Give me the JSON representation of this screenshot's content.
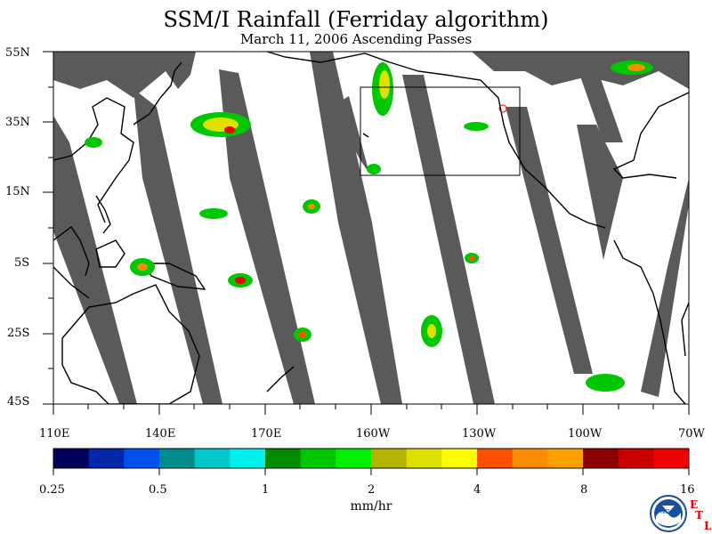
{
  "title": "SSM/I Rainfall (Ferriday algorithm)",
  "subtitle": "March 11, 2006  Ascending Passes",
  "lat_labels": [
    "55N",
    "35N",
    "15N",
    "5S",
    "25S",
    "45S"
  ],
  "lon_labels": [
    "110E",
    "140E",
    "170E",
    "160W",
    "130W",
    "100W",
    "70W"
  ],
  "colorbar": {
    "colors": [
      "#00005a",
      "#0028a8",
      "#0050f0",
      "#008c8c",
      "#00c8c8",
      "#00f0f0",
      "#008c00",
      "#00c800",
      "#00f000",
      "#b4b400",
      "#e0e000",
      "#ffff00",
      "#ff5000",
      "#ff8c00",
      "#ffa000",
      "#8c0000",
      "#c80000",
      "#f00000"
    ],
    "tick_labels": [
      "0.25",
      "0.5",
      "1",
      "2",
      "4",
      "8",
      "16"
    ],
    "units": "mm/hr"
  },
  "colors": {
    "swath_gap": "#5a5a5a",
    "coastline": "#000000",
    "ocean": "#ffffff"
  },
  "logo": {
    "icon": "noaa-logo-icon",
    "text": "NOAA",
    "etl_letters": [
      "E",
      "T",
      "L"
    ]
  }
}
